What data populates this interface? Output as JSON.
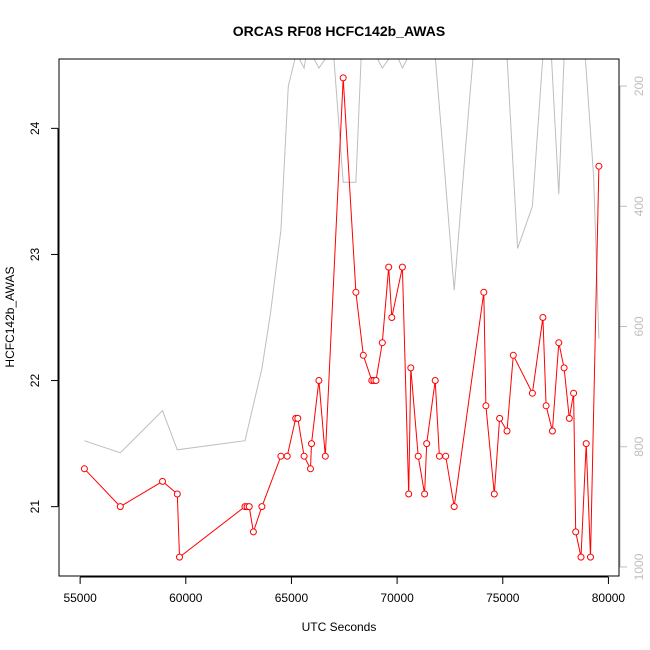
{
  "chart_data": {
    "type": "line",
    "title": "ORCAS RF08 HCFC142b_AWAS",
    "xlabel": "UTC Seconds",
    "ylabel": "HCFC142b_AWAS",
    "xlim": [
      54000,
      80500
    ],
    "ylim": [
      20.45,
      24.55
    ],
    "y2lim": [
      1015,
      155
    ],
    "x_ticks": [
      "55000",
      "60000",
      "65000",
      "70000",
      "75000",
      "80000"
    ],
    "y_ticks": [
      "21",
      "22",
      "23",
      "24"
    ],
    "y2_ticks": [
      "200",
      "400",
      "600",
      "800",
      "1000"
    ],
    "colors": {
      "series": "#ff0000",
      "pressure": "#bebebe",
      "axis": "#000000"
    },
    "series": [
      {
        "x": [
          55200,
          56900,
          58900,
          59600,
          59700,
          62800,
          62900,
          63000,
          63200,
          63600,
          64500,
          64800,
          65200,
          65300,
          65600,
          65900,
          65950,
          66300,
          66600,
          67450,
          68050,
          68400,
          68800,
          68900,
          69000,
          69300,
          69600,
          69750,
          70250,
          70550,
          70650,
          71000,
          71300,
          71400,
          71800,
          72000,
          72300,
          72700,
          74100,
          74200,
          74600,
          74850,
          75200,
          75500,
          76400,
          76900,
          77050,
          77350,
          77650,
          77900,
          78150,
          78350,
          78450,
          78700,
          78950,
          79150,
          79550
        ],
        "y": [
          21.3,
          21.0,
          21.2,
          21.1,
          20.6,
          21.0,
          21.0,
          21.0,
          20.8,
          21.0,
          21.4,
          21.4,
          21.7,
          21.7,
          21.4,
          21.3,
          21.5,
          22.0,
          21.4,
          24.4,
          22.7,
          22.2,
          22.0,
          22.0,
          22.0,
          22.3,
          22.9,
          22.5,
          22.9,
          21.1,
          22.1,
          21.4,
          21.1,
          21.5,
          22.0,
          21.4,
          21.4,
          21.0,
          22.7,
          21.8,
          21.1,
          21.7,
          21.6,
          22.2,
          21.9,
          22.5,
          21.8,
          21.6,
          22.3,
          22.1,
          21.7,
          21.9,
          20.8,
          20.6,
          21.5,
          20.6,
          23.7
        ]
      },
      {
        "x": [
          55200,
          56900,
          58900,
          59600,
          62800,
          63200,
          63600,
          64000,
          64500,
          64850,
          65200,
          65300,
          65600,
          65700,
          66000,
          66300,
          66700,
          67000,
          67450,
          67600,
          68050,
          68300,
          68900,
          69000,
          69300,
          69700,
          70000,
          70250,
          70550,
          70800,
          71000,
          71500,
          71800,
          72200,
          72700,
          73200,
          73600,
          74000,
          74200,
          74500,
          74800,
          75200,
          75700,
          76400,
          76900,
          77300,
          77650,
          77900,
          78100,
          78400,
          78700,
          78900,
          79300,
          79550
        ],
        "y": [
          790,
          810,
          740,
          805,
          790,
          730,
          670,
          580,
          440,
          200,
          150,
          150,
          170,
          150,
          150,
          170,
          150,
          150,
          360,
          360,
          360,
          150,
          150,
          150,
          170,
          150,
          150,
          170,
          150,
          150,
          150,
          150,
          150,
          320,
          540,
          320,
          150,
          150,
          150,
          150,
          150,
          150,
          470,
          400,
          150,
          150,
          380,
          150,
          150,
          150,
          150,
          150,
          350,
          620
        ]
      }
    ]
  }
}
